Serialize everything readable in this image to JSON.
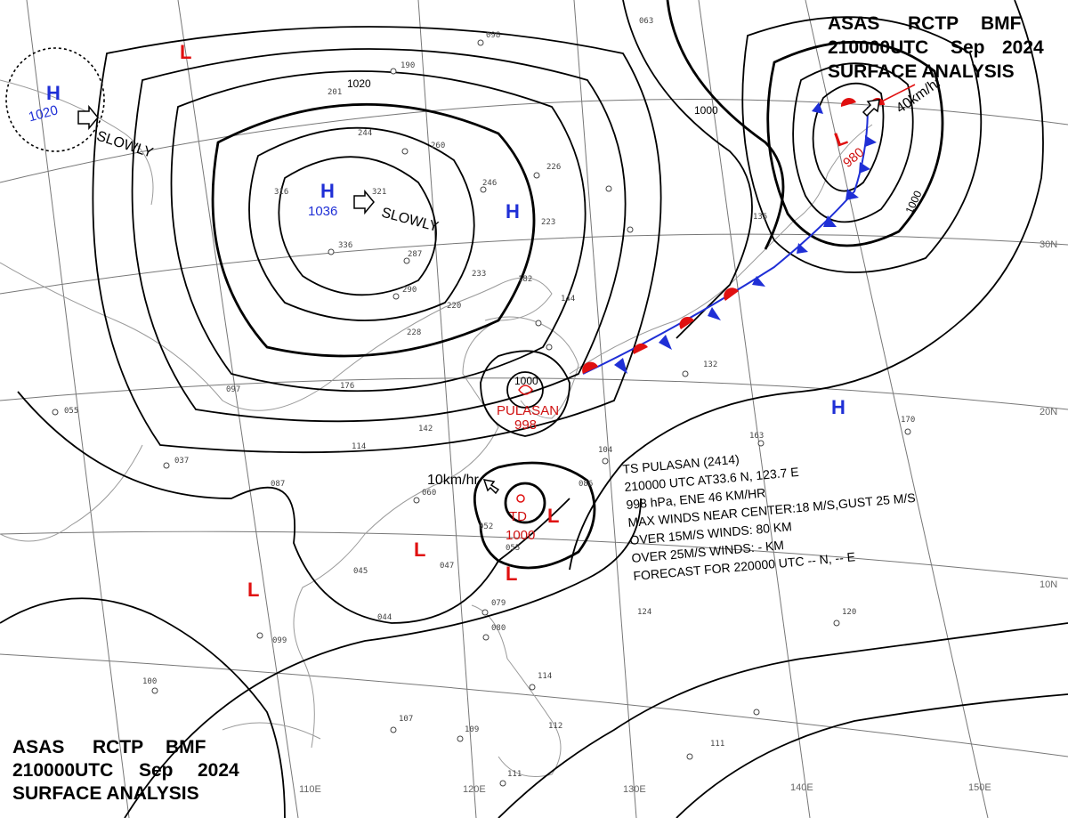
{
  "header_top_right": {
    "line1": [
      "ASAS",
      "RCTP",
      "BMF"
    ],
    "line2": [
      "210000UTC",
      "Sep",
      "2024"
    ],
    "line3": "SURFACE ANALYSIS"
  },
  "header_bottom_left": {
    "line1": [
      "ASAS",
      "RCTP",
      "BMF"
    ],
    "line2": [
      "210000UTC",
      "Sep",
      "2024"
    ],
    "line3": "SURFACE ANALYSIS"
  },
  "latitude_labels": [
    "30N",
    "20N",
    "10N"
  ],
  "longitude_labels": [
    "110E",
    "120E",
    "130E",
    "140E",
    "150E"
  ],
  "isobar_labels": [
    "1020",
    "1000",
    "1000",
    "1000"
  ],
  "pressure_centers": {
    "high_nw": {
      "symbol": "H",
      "value": "1020",
      "motion": "SLOWLY"
    },
    "high_main": {
      "symbol": "H",
      "value": "1036",
      "motion": "SLOWLY"
    },
    "high_center": {
      "symbol": "H"
    },
    "high_east": {
      "symbol": "H"
    },
    "low_north": {
      "symbol": "L"
    },
    "low_ne": {
      "symbol": "L",
      "value": "980",
      "motion": "40km/hr"
    },
    "low_west": {
      "symbol": "L"
    },
    "low_philippine_1": {
      "symbol": "L"
    },
    "low_philippine_2": {
      "symbol": "L"
    },
    "low_philippine_3": {
      "symbol": "L"
    }
  },
  "pulasan": {
    "name": "PULASAN",
    "pressure": "998"
  },
  "td": {
    "label": "TD",
    "pressure": "1000",
    "motion": "10km/hr"
  },
  "storm_bulletin": {
    "title": "TS  PULASAN  (2414)",
    "position": "210000 UTC  AT33.6 N, 123.7 E",
    "movement": "998 hPa, ENE  46 KM/HR",
    "max_winds": "MAX WINDS NEAR CENTER:18 M/S,GUST 25 M/S",
    "over15": "OVER 15M/S WINDS: 80 KM",
    "over25": "OVER 25M/S WINDS: - KM",
    "forecast": "FORECAST FOR 220000 UTC -- N, -- E"
  },
  "station_reports": [
    "098",
    "190",
    "260",
    "246",
    "226",
    "063",
    "201",
    "244",
    "316",
    "321",
    "336",
    "287",
    "290",
    "223",
    "233",
    "182",
    "220",
    "228",
    "176",
    "097",
    "055",
    "142",
    "114",
    "087",
    "060",
    "052",
    "055",
    "047",
    "045",
    "044",
    "079",
    "080",
    "114",
    "107",
    "109",
    "112",
    "111",
    "124",
    "120",
    "111",
    "132",
    "163",
    "170",
    "037",
    "086",
    "104",
    "135",
    "144",
    "099",
    "100"
  ],
  "colors": {
    "high_blue": "#1f2fd6",
    "low_red": "#e01010",
    "cold_front_blue": "#1f2fd6",
    "warm_front_red": "#e01010"
  }
}
